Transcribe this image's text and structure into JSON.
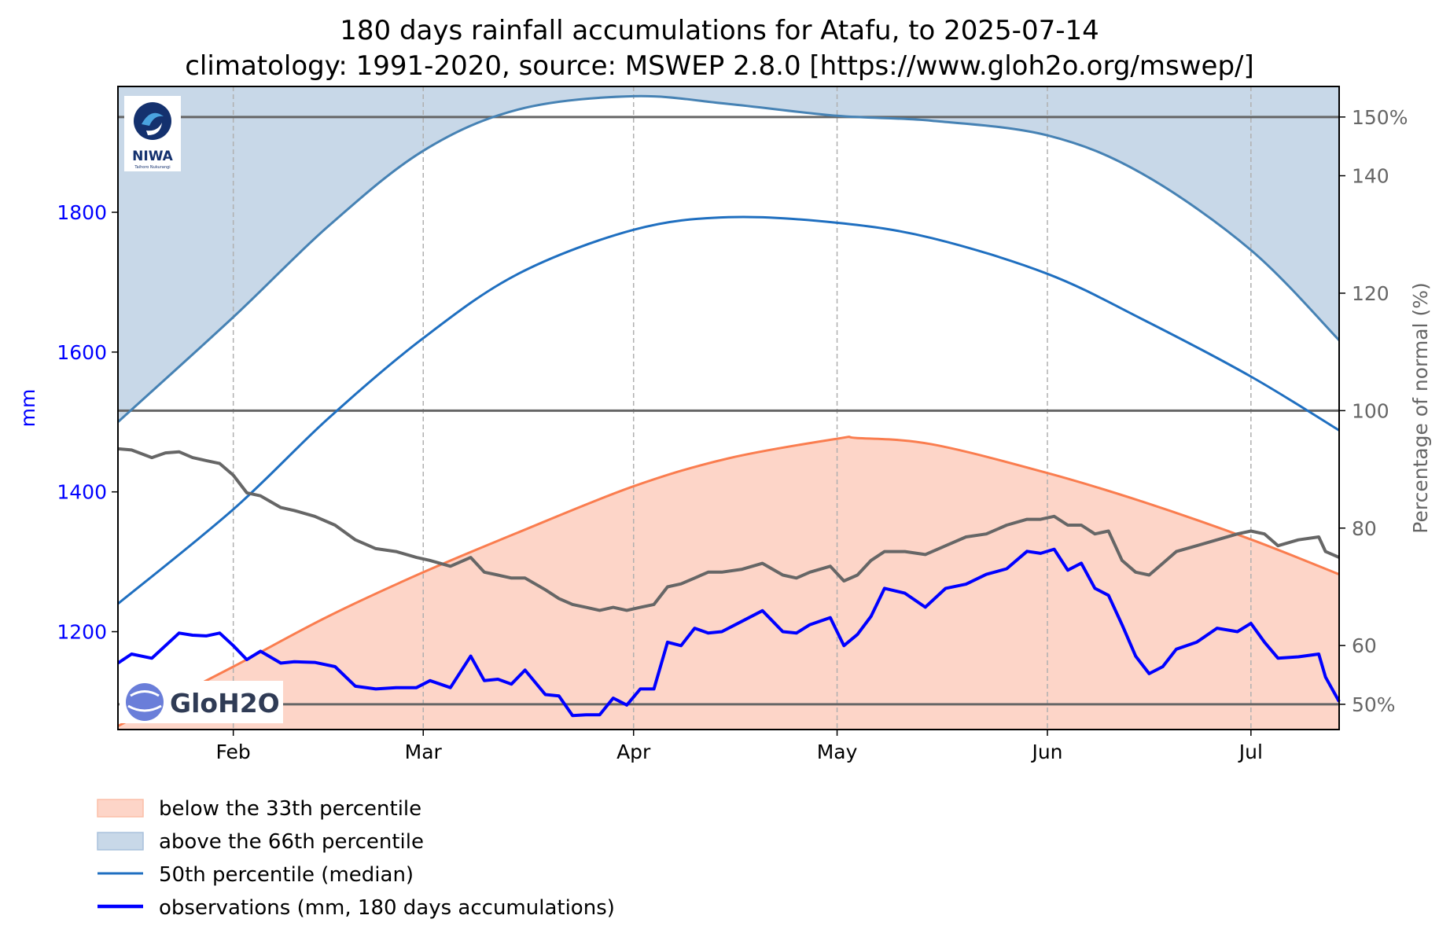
{
  "chart_data": {
    "type": "line",
    "title": "180 days rainfall accumulations for Atafu, to 2025-07-14",
    "subtitle": "climatology: 1991-2020, source: MSWEP 2.8.0 [https://www.gloh2o.org/mswep/]",
    "ylabel": "mm",
    "y2label": "Percentage of normal (%)",
    "ylim": [
      1060,
      1980
    ],
    "y2lim": [
      45.7,
      155.2
    ],
    "x_range": [
      "2025-01-15",
      "2025-07-14"
    ],
    "yticks": [
      1200,
      1400,
      1600,
      1800
    ],
    "y2ticks": [
      {
        "value": 50,
        "label": "50%"
      },
      {
        "value": 60,
        "label": "60"
      },
      {
        "value": 80,
        "label": "80"
      },
      {
        "value": 100,
        "label": "100"
      },
      {
        "value": 120,
        "label": "120"
      },
      {
        "value": 140,
        "label": "140"
      },
      {
        "value": 150,
        "label": "150%"
      }
    ],
    "xticks": [
      {
        "date": "2025-02-01",
        "label": "Feb"
      },
      {
        "date": "2025-03-01",
        "label": "Mar"
      },
      {
        "date": "2025-04-01",
        "label": "Apr"
      },
      {
        "date": "2025-05-01",
        "label": "May"
      },
      {
        "date": "2025-06-01",
        "label": "Jun"
      },
      {
        "date": "2025-07-01",
        "label": "Jul"
      }
    ],
    "reference_lines_pct": [
      50,
      100,
      150
    ],
    "grid": "vertical dashed",
    "legend_placement": "below",
    "colors": {
      "p33_fill": "#fdd5c8",
      "p33_line": "#fa7d4f",
      "p66_fill": "#c8d8e8",
      "p66_line": "#4682b4",
      "median": "#1f6fc0",
      "observed": "#0000ff",
      "percent": "#666666",
      "ref_line": "#666666"
    },
    "series": [
      {
        "key": "p33",
        "x": [
          "2025-01-15",
          "2025-02-01",
          "2025-02-15",
          "2025-03-01",
          "2025-03-15",
          "2025-04-01",
          "2025-04-15",
          "2025-05-01",
          "2025-05-04",
          "2025-05-15",
          "2025-06-01",
          "2025-06-15",
          "2025-07-01",
          "2025-07-14"
        ],
        "values": [
          1065,
          1150,
          1222,
          1285,
          1342,
          1408,
          1448,
          1476,
          1477,
          1468,
          1427,
          1386,
          1332,
          1282
        ]
      },
      {
        "key": "p66",
        "x": [
          "2025-01-15",
          "2025-02-01",
          "2025-02-15",
          "2025-03-01",
          "2025-03-15",
          "2025-04-01",
          "2025-04-15",
          "2025-05-01",
          "2025-05-15",
          "2025-06-01",
          "2025-06-15",
          "2025-07-01",
          "2025-07-14"
        ],
        "values": [
          1500,
          1650,
          1780,
          1888,
          1947,
          1966,
          1955,
          1938,
          1931,
          1910,
          1855,
          1746,
          1617
        ]
      },
      {
        "key": "median",
        "name": "50th percentile (median)",
        "x": [
          "2025-01-15",
          "2025-02-01",
          "2025-02-15",
          "2025-03-01",
          "2025-03-15",
          "2025-04-01",
          "2025-04-15",
          "2025-05-01",
          "2025-05-15",
          "2025-06-01",
          "2025-06-15",
          "2025-07-01",
          "2025-07-14"
        ],
        "values": [
          1240,
          1375,
          1505,
          1620,
          1712,
          1775,
          1793,
          1785,
          1763,
          1712,
          1647,
          1565,
          1488
        ]
      },
      {
        "key": "observed",
        "name": "observations (mm, 180 days accumulations)",
        "x": [
          "2025-01-15",
          "2025-01-17",
          "2025-01-20",
          "2025-01-22",
          "2025-01-24",
          "2025-01-26",
          "2025-01-28",
          "2025-01-30",
          "2025-02-01",
          "2025-02-03",
          "2025-02-05",
          "2025-02-08",
          "2025-02-10",
          "2025-02-13",
          "2025-02-16",
          "2025-02-19",
          "2025-02-22",
          "2025-02-25",
          "2025-02-28",
          "2025-03-02",
          "2025-03-05",
          "2025-03-08",
          "2025-03-10",
          "2025-03-12",
          "2025-03-14",
          "2025-03-16",
          "2025-03-19",
          "2025-03-21",
          "2025-03-23",
          "2025-03-25",
          "2025-03-27",
          "2025-03-29",
          "2025-03-31",
          "2025-04-02",
          "2025-04-04",
          "2025-04-06",
          "2025-04-08",
          "2025-04-10",
          "2025-04-12",
          "2025-04-14",
          "2025-04-17",
          "2025-04-20",
          "2025-04-23",
          "2025-04-25",
          "2025-04-27",
          "2025-04-30",
          "2025-05-02",
          "2025-05-04",
          "2025-05-06",
          "2025-05-08",
          "2025-05-11",
          "2025-05-14",
          "2025-05-17",
          "2025-05-20",
          "2025-05-23",
          "2025-05-26",
          "2025-05-29",
          "2025-05-31",
          "2025-06-02",
          "2025-06-04",
          "2025-06-06",
          "2025-06-08",
          "2025-06-10",
          "2025-06-12",
          "2025-06-14",
          "2025-06-16",
          "2025-06-18",
          "2025-06-20",
          "2025-06-23",
          "2025-06-26",
          "2025-06-29",
          "2025-07-01",
          "2025-07-03",
          "2025-07-05",
          "2025-07-08",
          "2025-07-11",
          "2025-07-12",
          "2025-07-14"
        ],
        "values": [
          1155,
          1168,
          1162,
          1180,
          1198,
          1195,
          1194,
          1198,
          1180,
          1160,
          1172,
          1155,
          1157,
          1156,
          1150,
          1122,
          1118,
          1120,
          1120,
          1130,
          1120,
          1165,
          1130,
          1132,
          1125,
          1145,
          1110,
          1108,
          1080,
          1081,
          1081,
          1105,
          1095,
          1118,
          1118,
          1185,
          1180,
          1205,
          1198,
          1200,
          1215,
          1230,
          1200,
          1198,
          1210,
          1220,
          1180,
          1196,
          1222,
          1262,
          1255,
          1235,
          1262,
          1268,
          1282,
          1290,
          1315,
          1312,
          1318,
          1288,
          1298,
          1262,
          1252,
          1210,
          1165,
          1140,
          1150,
          1175,
          1185,
          1205,
          1200,
          1212,
          1185,
          1162,
          1164,
          1168,
          1135,
          1100
        ]
      },
      {
        "key": "percent",
        "x": [
          "2025-01-15",
          "2025-01-17",
          "2025-01-20",
          "2025-01-22",
          "2025-01-24",
          "2025-01-26",
          "2025-01-28",
          "2025-01-30",
          "2025-02-01",
          "2025-02-03",
          "2025-02-05",
          "2025-02-08",
          "2025-02-10",
          "2025-02-13",
          "2025-02-16",
          "2025-02-19",
          "2025-02-22",
          "2025-02-25",
          "2025-02-28",
          "2025-03-02",
          "2025-03-05",
          "2025-03-08",
          "2025-03-10",
          "2025-03-12",
          "2025-03-14",
          "2025-03-16",
          "2025-03-19",
          "2025-03-21",
          "2025-03-23",
          "2025-03-25",
          "2025-03-27",
          "2025-03-29",
          "2025-03-31",
          "2025-04-02",
          "2025-04-04",
          "2025-04-06",
          "2025-04-08",
          "2025-04-10",
          "2025-04-12",
          "2025-04-14",
          "2025-04-17",
          "2025-04-20",
          "2025-04-23",
          "2025-04-25",
          "2025-04-27",
          "2025-04-30",
          "2025-05-02",
          "2025-05-04",
          "2025-05-06",
          "2025-05-08",
          "2025-05-11",
          "2025-05-14",
          "2025-05-17",
          "2025-05-20",
          "2025-05-23",
          "2025-05-26",
          "2025-05-29",
          "2025-05-31",
          "2025-06-02",
          "2025-06-04",
          "2025-06-06",
          "2025-06-08",
          "2025-06-10",
          "2025-06-12",
          "2025-06-14",
          "2025-06-16",
          "2025-06-18",
          "2025-06-20",
          "2025-06-23",
          "2025-06-26",
          "2025-06-29",
          "2025-07-01",
          "2025-07-03",
          "2025-07-05",
          "2025-07-08",
          "2025-07-11",
          "2025-07-12",
          "2025-07-14"
        ],
        "values": [
          93.5,
          93.3,
          92.0,
          92.8,
          93.0,
          92.0,
          91.5,
          91.0,
          89.0,
          86.0,
          85.5,
          83.5,
          83.0,
          82.0,
          80.5,
          78.0,
          76.5,
          76.0,
          75.0,
          74.5,
          73.5,
          75.0,
          72.5,
          72.0,
          71.5,
          71.5,
          69.5,
          68.0,
          67.0,
          66.5,
          66.0,
          66.5,
          66.0,
          66.5,
          67.0,
          70.0,
          70.5,
          71.5,
          72.5,
          72.5,
          73.0,
          74.0,
          72.0,
          71.5,
          72.5,
          73.5,
          71.0,
          72.0,
          74.5,
          76.0,
          76.0,
          75.5,
          77.0,
          78.5,
          79.0,
          80.5,
          81.5,
          81.5,
          82.0,
          80.5,
          80.5,
          79.0,
          79.5,
          74.5,
          72.5,
          72.0,
          74.0,
          76.0,
          77.0,
          78.0,
          79.0,
          79.5,
          79.0,
          77.0,
          78.0,
          78.5,
          76.0,
          75.0
        ]
      }
    ],
    "legend": [
      {
        "key": "p33_fill",
        "label": "below the 33th percentile"
      },
      {
        "key": "p66_fill",
        "label": "above the 66th percentile"
      },
      {
        "key": "median",
        "label": "50th percentile (median)"
      },
      {
        "key": "observed",
        "label": "observations (mm, 180 days accumulations)"
      }
    ]
  },
  "logos": {
    "niwa": {
      "text": "NIWA",
      "subtext": "Taihoro Nukurangi"
    },
    "gloh2o": {
      "text": "GloH2O"
    }
  }
}
